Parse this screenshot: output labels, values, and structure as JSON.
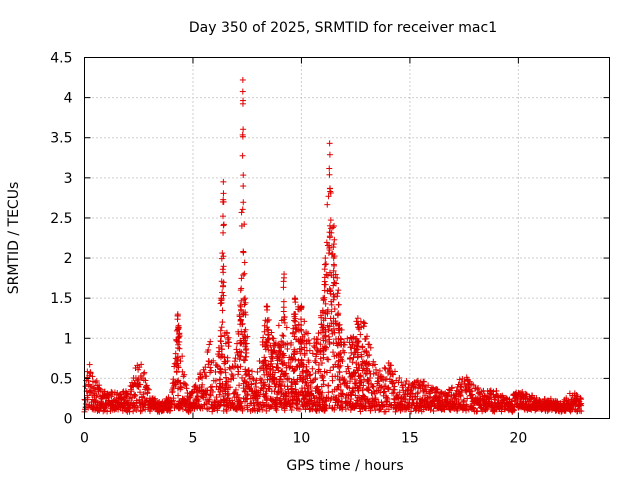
{
  "chart_data": {
    "type": "scatter",
    "title": "Day 350 of 2025, SRMTID for receiver mac1",
    "xlabel": "GPS time / hours",
    "ylabel": "SRMTID / TECUs",
    "xlim": [
      0,
      24.2
    ],
    "ylim": [
      0,
      4.5
    ],
    "grid": true,
    "marker": "+",
    "series_color": "#e00000",
    "x_ticks": [
      "0",
      "5",
      "10",
      "15",
      "20"
    ],
    "x_tick_values": [
      0,
      5,
      10,
      15,
      20
    ],
    "y_ticks": [
      "0",
      "0.5",
      "1",
      "1.5",
      "2",
      "2.5",
      "3",
      "3.5",
      "4",
      "4.5"
    ],
    "y_tick_values": [
      0,
      0.5,
      1,
      1.5,
      2,
      2.5,
      3,
      3.5,
      4,
      4.5
    ],
    "series": [
      {
        "name": "SRMTID",
        "envelope_note": "approximate upper envelope of the point cloud (hour, TECU)",
        "envelope": [
          [
            0,
            0.45
          ],
          [
            0.2,
            0.72
          ],
          [
            0.5,
            0.5
          ],
          [
            1,
            0.35
          ],
          [
            1.5,
            0.32
          ],
          [
            2,
            0.35
          ],
          [
            2.2,
            0.5
          ],
          [
            2.5,
            0.78
          ],
          [
            2.8,
            0.62
          ],
          [
            3,
            0.3
          ],
          [
            3.5,
            0.2
          ],
          [
            4,
            0.3
          ],
          [
            4.2,
            0.9
          ],
          [
            4.3,
            1.3
          ],
          [
            4.5,
            0.8
          ],
          [
            4.8,
            0.3
          ],
          [
            5.2,
            0.45
          ],
          [
            5.6,
            0.8
          ],
          [
            5.8,
            1.0
          ],
          [
            6,
            0.6
          ],
          [
            6.2,
            0.9
          ],
          [
            6.3,
            1.5
          ],
          [
            6.4,
            2.95
          ],
          [
            6.5,
            1.2
          ],
          [
            6.8,
            0.8
          ],
          [
            7,
            0.9
          ],
          [
            7.2,
            1.6
          ],
          [
            7.3,
            4.22
          ],
          [
            7.4,
            1.5
          ],
          [
            7.6,
            0.6
          ],
          [
            8,
            0.6
          ],
          [
            8.4,
            1.4
          ],
          [
            8.7,
            1.0
          ],
          [
            9,
            1.2
          ],
          [
            9.2,
            1.8
          ],
          [
            9.4,
            0.7
          ],
          [
            9.7,
            1.5
          ],
          [
            10,
            1.4
          ],
          [
            10.2,
            1.2
          ],
          [
            10.5,
            0.9
          ],
          [
            10.8,
            1.2
          ],
          [
            11,
            1.5
          ],
          [
            11.1,
            2.0
          ],
          [
            11.3,
            3.43
          ],
          [
            11.5,
            2.4
          ],
          [
            11.7,
            1.6
          ],
          [
            11.9,
            1.0
          ],
          [
            12.2,
            1.0
          ],
          [
            12.6,
            1.25
          ],
          [
            13,
            1.2
          ],
          [
            13.3,
            0.75
          ],
          [
            13.6,
            0.6
          ],
          [
            14,
            0.7
          ],
          [
            14.5,
            0.55
          ],
          [
            15,
            0.45
          ],
          [
            15.5,
            0.5
          ],
          [
            16,
            0.4
          ],
          [
            16.5,
            0.35
          ],
          [
            17,
            0.4
          ],
          [
            17.5,
            0.55
          ],
          [
            18,
            0.4
          ],
          [
            18.5,
            0.35
          ],
          [
            19,
            0.35
          ],
          [
            19.5,
            0.25
          ],
          [
            20,
            0.35
          ],
          [
            20.5,
            0.3
          ],
          [
            21,
            0.25
          ],
          [
            21.5,
            0.25
          ],
          [
            22,
            0.2
          ],
          [
            22.5,
            0.35
          ],
          [
            22.9,
            0.25
          ]
        ]
      }
    ]
  }
}
